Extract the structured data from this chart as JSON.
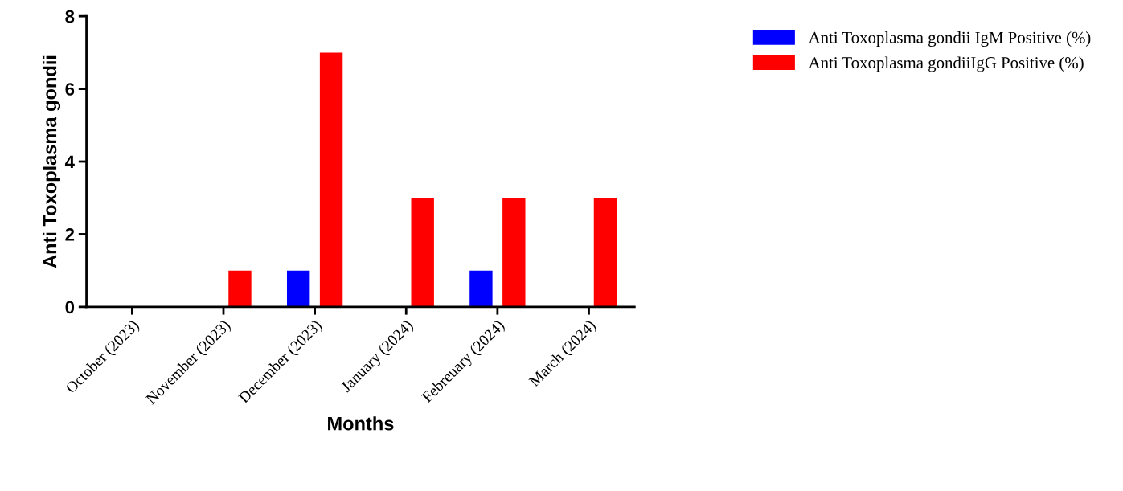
{
  "chart_data": {
    "type": "bar",
    "ylabel": "Anti Toxoplasma gondii",
    "xlabel": "Months",
    "categories": [
      "October (2023)",
      "November (2023)",
      "December (2023)",
      "January (2024)",
      "Febreuary (2024)",
      "March (2024)"
    ],
    "series": [
      {
        "name": "Anti Toxoplasma gondii IgM Positive (%)",
        "color": "#0000ff",
        "values": [
          0,
          0,
          1,
          0,
          1,
          0
        ]
      },
      {
        "name": "Anti Toxoplasma gondiiIgG Positive (%)",
        "color": "#ff0000",
        "values": [
          0,
          1,
          7,
          3,
          3,
          3
        ]
      }
    ],
    "ylim": [
      0,
      8
    ],
    "yticks": [
      0,
      2,
      4,
      6,
      8
    ],
    "grid": false,
    "legend": "top right"
  }
}
